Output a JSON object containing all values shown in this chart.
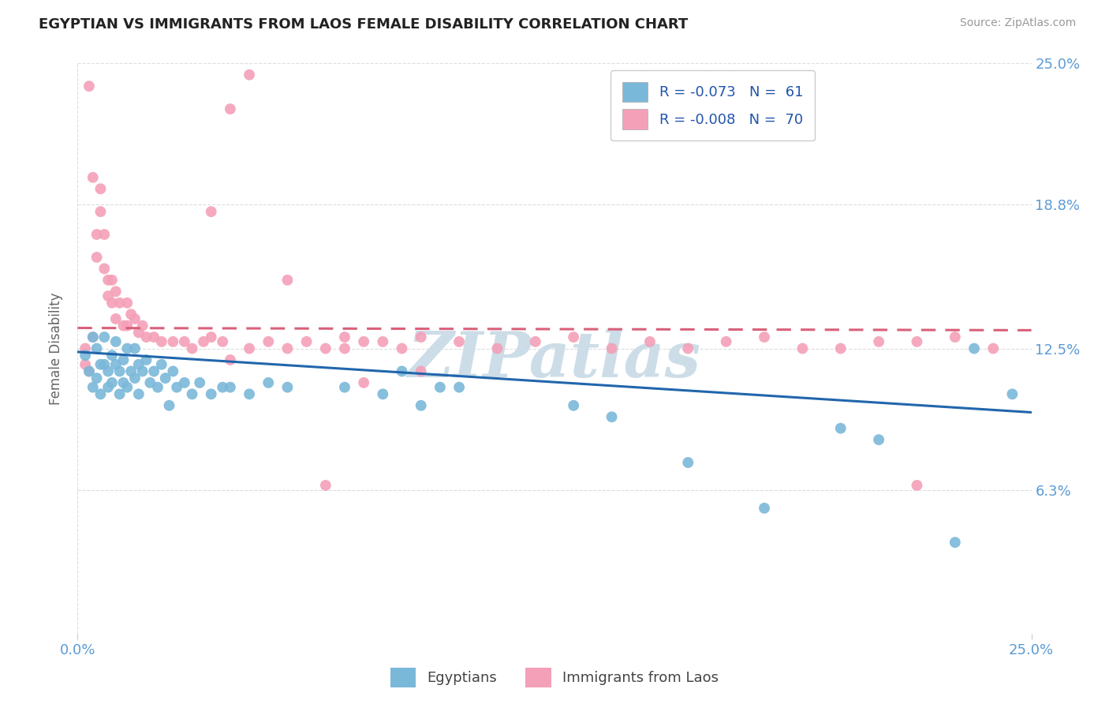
{
  "title": "EGYPTIAN VS IMMIGRANTS FROM LAOS FEMALE DISABILITY CORRELATION CHART",
  "source": "Source: ZipAtlas.com",
  "ylabel": "Female Disability",
  "xlim": [
    0.0,
    0.25
  ],
  "ylim": [
    0.0,
    0.25
  ],
  "legend_labels": [
    "Egyptians",
    "Immigrants from Laos"
  ],
  "legend_r": [
    "R = -0.073",
    "R = -0.008"
  ],
  "legend_n": [
    "N =  61",
    "N =  70"
  ],
  "blue_color": "#7ab8d9",
  "pink_color": "#f4a0b8",
  "blue_line_color": "#2166ac",
  "pink_line_color": "#d9607a",
  "axis_label_color": "#5b9bd5",
  "watermark_color": "#ccdde8",
  "watermark_text": "ZIPatlas",
  "blue_scatter_x": [
    0.002,
    0.003,
    0.004,
    0.004,
    0.005,
    0.005,
    0.006,
    0.006,
    0.007,
    0.007,
    0.008,
    0.008,
    0.009,
    0.009,
    0.01,
    0.01,
    0.011,
    0.011,
    0.012,
    0.012,
    0.013,
    0.013,
    0.014,
    0.015,
    0.015,
    0.016,
    0.016,
    0.017,
    0.018,
    0.019,
    0.02,
    0.021,
    0.022,
    0.023,
    0.024,
    0.025,
    0.026,
    0.028,
    0.03,
    0.032,
    0.035,
    0.038,
    0.04,
    0.045,
    0.05,
    0.055,
    0.07,
    0.08,
    0.085,
    0.09,
    0.095,
    0.1,
    0.13,
    0.14,
    0.16,
    0.18,
    0.2,
    0.21,
    0.23,
    0.235,
    0.245
  ],
  "blue_scatter_y": [
    0.122,
    0.115,
    0.13,
    0.108,
    0.125,
    0.112,
    0.118,
    0.105,
    0.13,
    0.118,
    0.115,
    0.108,
    0.122,
    0.11,
    0.128,
    0.118,
    0.115,
    0.105,
    0.12,
    0.11,
    0.125,
    0.108,
    0.115,
    0.125,
    0.112,
    0.118,
    0.105,
    0.115,
    0.12,
    0.11,
    0.115,
    0.108,
    0.118,
    0.112,
    0.1,
    0.115,
    0.108,
    0.11,
    0.105,
    0.11,
    0.105,
    0.108,
    0.108,
    0.105,
    0.11,
    0.108,
    0.108,
    0.105,
    0.115,
    0.1,
    0.108,
    0.108,
    0.1,
    0.095,
    0.075,
    0.055,
    0.09,
    0.085,
    0.04,
    0.125,
    0.105
  ],
  "pink_scatter_x": [
    0.002,
    0.002,
    0.003,
    0.003,
    0.004,
    0.004,
    0.005,
    0.005,
    0.006,
    0.006,
    0.007,
    0.007,
    0.008,
    0.008,
    0.009,
    0.009,
    0.01,
    0.01,
    0.011,
    0.012,
    0.013,
    0.013,
    0.014,
    0.015,
    0.016,
    0.017,
    0.018,
    0.02,
    0.022,
    0.025,
    0.028,
    0.03,
    0.033,
    0.035,
    0.038,
    0.04,
    0.045,
    0.05,
    0.055,
    0.06,
    0.065,
    0.07,
    0.075,
    0.08,
    0.09,
    0.1,
    0.11,
    0.12,
    0.13,
    0.14,
    0.15,
    0.16,
    0.17,
    0.18,
    0.19,
    0.2,
    0.21,
    0.22,
    0.23,
    0.24,
    0.035,
    0.04,
    0.045,
    0.055,
    0.065,
    0.07,
    0.075,
    0.085,
    0.09,
    0.22
  ],
  "pink_scatter_y": [
    0.125,
    0.118,
    0.24,
    0.115,
    0.2,
    0.13,
    0.175,
    0.165,
    0.195,
    0.185,
    0.175,
    0.16,
    0.155,
    0.148,
    0.155,
    0.145,
    0.15,
    0.138,
    0.145,
    0.135,
    0.145,
    0.135,
    0.14,
    0.138,
    0.132,
    0.135,
    0.13,
    0.13,
    0.128,
    0.128,
    0.128,
    0.125,
    0.128,
    0.13,
    0.128,
    0.12,
    0.125,
    0.128,
    0.125,
    0.128,
    0.125,
    0.13,
    0.128,
    0.128,
    0.13,
    0.128,
    0.125,
    0.128,
    0.13,
    0.125,
    0.128,
    0.125,
    0.128,
    0.13,
    0.125,
    0.125,
    0.128,
    0.128,
    0.13,
    0.125,
    0.185,
    0.23,
    0.245,
    0.155,
    0.065,
    0.125,
    0.11,
    0.125,
    0.115,
    0.065
  ],
  "blue_trend_x": [
    0.0,
    0.25
  ],
  "blue_trend_y": [
    0.1235,
    0.097
  ],
  "pink_trend_x": [
    0.0,
    0.25
  ],
  "pink_trend_y": [
    0.134,
    0.133
  ]
}
